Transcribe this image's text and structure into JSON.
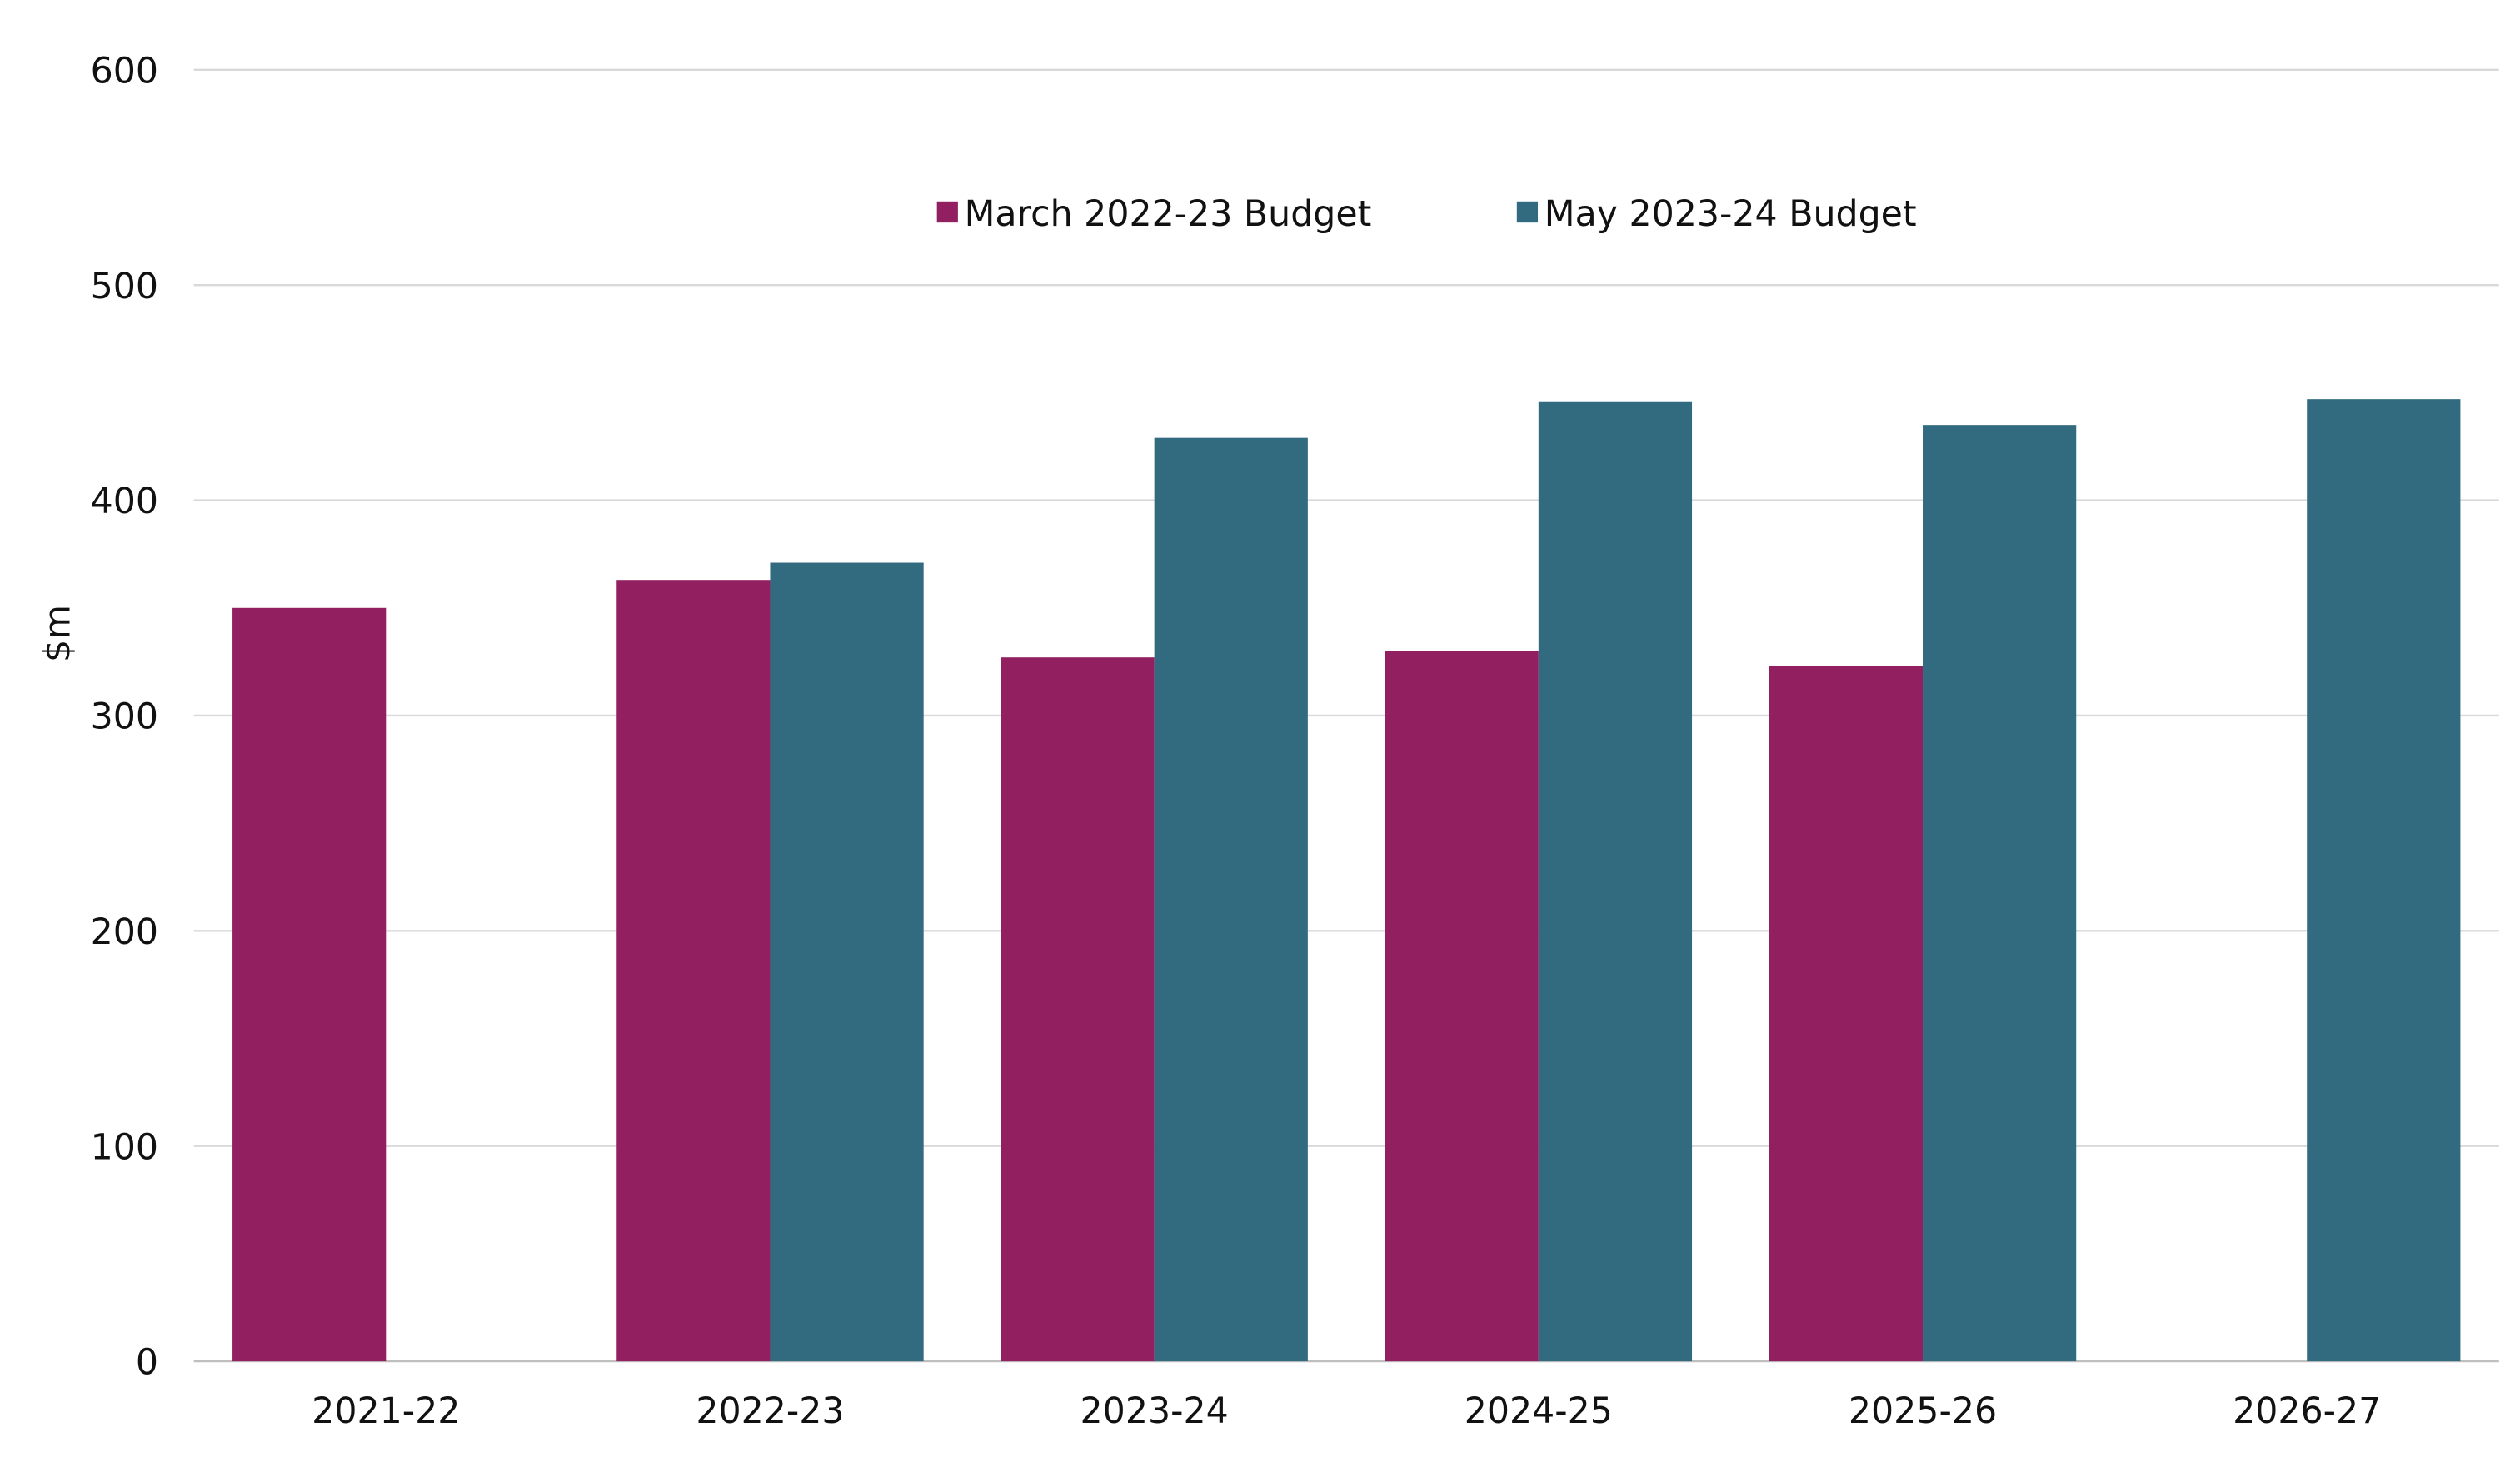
{
  "chart_data": {
    "type": "bar",
    "title": "",
    "xlabel": "",
    "ylabel": "$m",
    "ylim": [
      0,
      600
    ],
    "yticks": [
      0,
      100,
      200,
      300,
      400,
      500,
      600
    ],
    "grid": true,
    "legend_position": "top-center",
    "categories": [
      "2021-22",
      "2022-23",
      "2023-24",
      "2024-25",
      "2025-26",
      "2026-27"
    ],
    "series": [
      {
        "name": "March 2022-23 Budget",
        "color": "#921F5F",
        "values": [
          350,
          363,
          327,
          330,
          323,
          null
        ]
      },
      {
        "name": "May 2023-24 Budget",
        "color": "#326A80",
        "values": [
          null,
          371,
          429,
          446,
          435,
          447
        ]
      }
    ]
  }
}
